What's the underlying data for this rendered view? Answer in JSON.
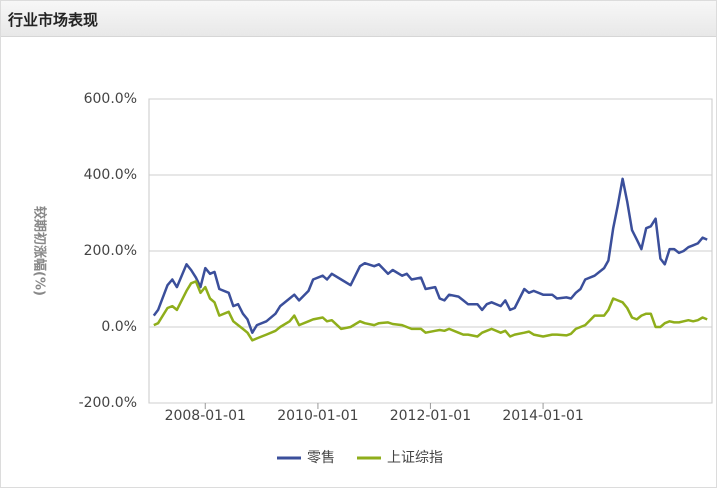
{
  "header": {
    "title": "行业市场表现"
  },
  "chart_data": {
    "type": "line",
    "ylabel": "较期初涨幅(%)",
    "x": [
      "2007-02-01",
      "2007-03-01",
      "2007-05-01",
      "2007-06-01",
      "2007-07-01",
      "2007-09-01",
      "2007-10-01",
      "2007-11-01",
      "2007-12-01",
      "2008-01-01",
      "2008-02-01",
      "2008-03-01",
      "2008-04-01",
      "2008-06-01",
      "2008-07-01",
      "2008-08-01",
      "2008-09-01",
      "2008-10-01",
      "2008-11-01",
      "2008-12-01",
      "2009-02-01",
      "2009-04-01",
      "2009-05-01",
      "2009-07-01",
      "2009-08-01",
      "2009-09-01",
      "2009-11-01",
      "2009-12-01",
      "2010-02-01",
      "2010-03-01",
      "2010-04-01",
      "2010-06-01",
      "2010-08-01",
      "2010-10-01",
      "2010-11-01",
      "2011-01-01",
      "2011-02-01",
      "2011-04-01",
      "2011-05-01",
      "2011-07-01",
      "2011-08-01",
      "2011-09-01",
      "2011-11-01",
      "2011-12-01",
      "2012-02-01",
      "2012-03-01",
      "2012-04-01",
      "2012-05-01",
      "2012-07-01",
      "2012-08-01",
      "2012-09-01",
      "2012-11-01",
      "2012-12-01",
      "2013-01-01",
      "2013-02-01",
      "2013-04-01",
      "2013-05-01",
      "2013-06-01",
      "2013-07-01",
      "2013-09-01",
      "2013-10-01",
      "2013-11-01",
      "2014-01-01",
      "2014-03-01",
      "2014-04-01",
      "2014-06-01",
      "2014-07-01",
      "2014-08-01",
      "2014-09-01",
      "2014-10-01",
      "2014-12-01",
      "2015-02-01",
      "2015-03-01",
      "2015-04-01",
      "2015-05-01",
      "2015-06-01",
      "2015-07-01",
      "2015-08-01",
      "2015-09-01",
      "2015-10-01",
      "2015-11-01",
      "2015-12-01",
      "2016-01-01",
      "2016-02-01",
      "2016-03-01",
      "2016-04-01",
      "2016-05-01",
      "2016-06-01",
      "2016-07-01",
      "2016-08-01",
      "2016-09-01",
      "2016-10-01",
      "2016-11-01",
      "2016-12-01"
    ],
    "series": [
      {
        "name": "零售",
        "color": "#3b4f9b",
        "values": [
          30,
          45,
          110,
          125,
          105,
          165,
          150,
          130,
          105,
          155,
          140,
          145,
          100,
          90,
          55,
          60,
          35,
          20,
          -15,
          5,
          15,
          35,
          55,
          75,
          85,
          70,
          95,
          125,
          135,
          125,
          140,
          125,
          110,
          160,
          168,
          160,
          165,
          140,
          150,
          135,
          140,
          125,
          130,
          100,
          105,
          75,
          70,
          85,
          80,
          70,
          60,
          60,
          45,
          60,
          65,
          55,
          70,
          45,
          50,
          100,
          90,
          95,
          85,
          85,
          75,
          78,
          75,
          90,
          100,
          125,
          135,
          155,
          175,
          260,
          320,
          390,
          330,
          255,
          230,
          205,
          260,
          265,
          285,
          180,
          165,
          205,
          205,
          195,
          200,
          210,
          215,
          220,
          235,
          230
        ]
      },
      {
        "name": "上证综指",
        "color": "#8fae1b",
        "values": [
          5,
          10,
          50,
          55,
          45,
          95,
          115,
          120,
          90,
          105,
          75,
          65,
          30,
          40,
          15,
          5,
          -5,
          -15,
          -35,
          -30,
          -20,
          -10,
          0,
          15,
          30,
          5,
          15,
          20,
          25,
          15,
          18,
          -5,
          0,
          15,
          10,
          5,
          10,
          12,
          8,
          5,
          0,
          -5,
          -5,
          -15,
          -10,
          -8,
          -10,
          -5,
          -15,
          -20,
          -20,
          -25,
          -15,
          -10,
          -5,
          -15,
          -10,
          -25,
          -20,
          -15,
          -12,
          -20,
          -25,
          -20,
          -20,
          -22,
          -18,
          -5,
          0,
          5,
          30,
          30,
          45,
          75,
          70,
          65,
          50,
          25,
          20,
          30,
          35,
          35,
          0,
          0,
          10,
          15,
          12,
          12,
          15,
          18,
          15,
          18,
          25,
          20
        ]
      }
    ],
    "xlim": [
      "2007-01-01",
      "2017-01-01"
    ],
    "xticks": [
      "2008-01-01",
      "2010-01-01",
      "2012-01-01",
      "2014-01-01"
    ],
    "ylim": [
      -200,
      600
    ],
    "yticks": [
      {
        "value": -200,
        "label": "-200.0%"
      },
      {
        "value": 0,
        "label": "0.0%"
      },
      {
        "value": 200,
        "label": "200.0%"
      },
      {
        "value": 400,
        "label": "400.0%"
      },
      {
        "value": 600,
        "label": "600.0%"
      }
    ],
    "grid": true,
    "legend": "bottom"
  }
}
